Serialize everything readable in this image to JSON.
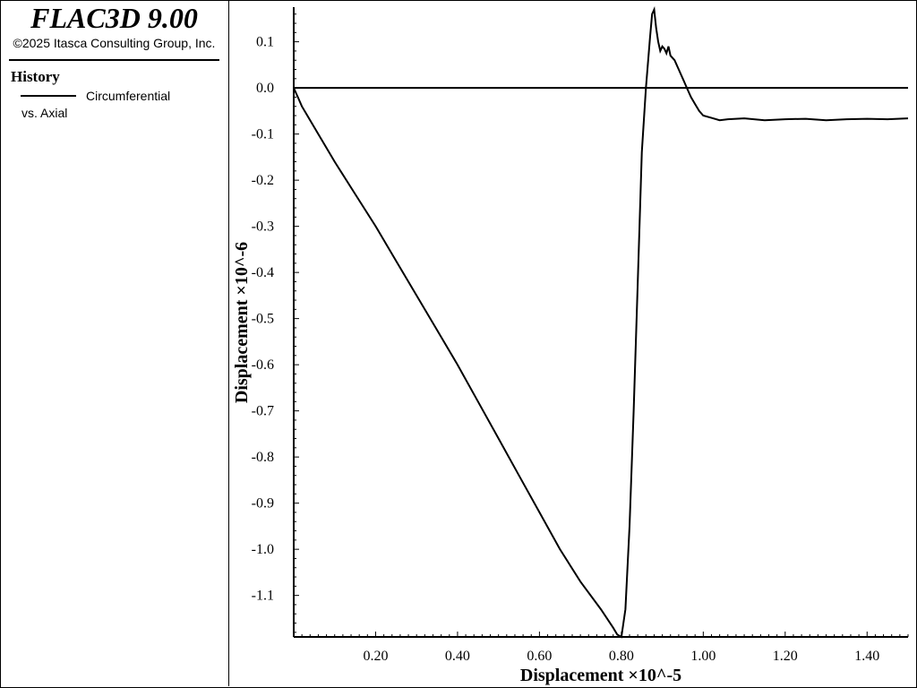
{
  "app": {
    "title": "FLAC3D 9.00",
    "copyright": "©2025 Itasca Consulting Group, Inc."
  },
  "legend": {
    "heading": "History",
    "series_name": "Circumferential",
    "series_sub": "vs. Axial"
  },
  "chart_data": {
    "type": "line",
    "xlabel": "Displacement ×10^-5",
    "ylabel": "Displacement ×10^-6",
    "xlim": [
      0,
      1.5
    ],
    "ylim": [
      -1.19,
      0.175
    ],
    "x_ticks": [
      "0.20",
      "0.40",
      "0.60",
      "0.80",
      "1.00",
      "1.20",
      "1.40"
    ],
    "y_ticks": [
      "0.1",
      "0.0",
      "-0.1",
      "-0.2",
      "-0.3",
      "-0.4",
      "-0.5",
      "-0.6",
      "-0.7",
      "-0.8",
      "-0.9",
      "-1.0",
      "-1.1"
    ],
    "zero_line": true,
    "series": [
      {
        "x": [
          0.0,
          0.01,
          0.02,
          0.04,
          0.06,
          0.08,
          0.1,
          0.15,
          0.2,
          0.25,
          0.3,
          0.35,
          0.4,
          0.45,
          0.5,
          0.55,
          0.6,
          0.65,
          0.7,
          0.75,
          0.78,
          0.79,
          0.8,
          0.81,
          0.82,
          0.83,
          0.84,
          0.85,
          0.86,
          0.87,
          0.875,
          0.88,
          0.885,
          0.89,
          0.895,
          0.9,
          0.905,
          0.91,
          0.915,
          0.92,
          0.93,
          0.94,
          0.95,
          0.96,
          0.97,
          0.98,
          0.99,
          1.0,
          1.02,
          1.04,
          1.06,
          1.1,
          1.15,
          1.2,
          1.25,
          1.3,
          1.35,
          1.4,
          1.45,
          1.5
        ],
        "y": [
          0.0,
          -0.02,
          -0.04,
          -0.07,
          -0.1,
          -0.13,
          -0.16,
          -0.23,
          -0.3,
          -0.375,
          -0.45,
          -0.525,
          -0.6,
          -0.68,
          -0.76,
          -0.84,
          -0.92,
          -1.0,
          -1.07,
          -1.13,
          -1.17,
          -1.185,
          -1.19,
          -1.13,
          -0.95,
          -0.7,
          -0.42,
          -0.14,
          0.0,
          0.11,
          0.16,
          0.17,
          0.13,
          0.1,
          0.08,
          0.09,
          0.085,
          0.075,
          0.09,
          0.07,
          0.06,
          0.04,
          0.02,
          0.0,
          -0.02,
          -0.035,
          -0.05,
          -0.06,
          -0.065,
          -0.07,
          -0.068,
          -0.066,
          -0.07,
          -0.068,
          -0.067,
          -0.07,
          -0.068,
          -0.067,
          -0.068,
          -0.066
        ]
      }
    ]
  }
}
